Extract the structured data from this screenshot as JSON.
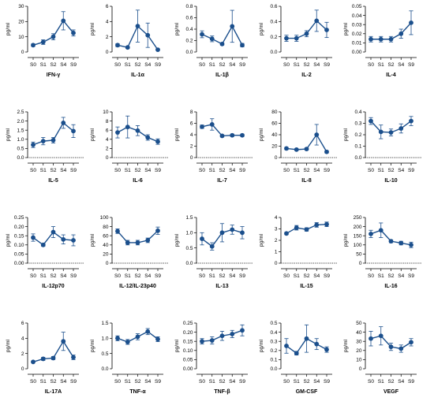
{
  "figure": {
    "series_color": "#1b4f8c",
    "baseline_style": "dotted",
    "layout": "4 rows x 5 columns"
  },
  "chart_data": [
    {
      "type": "line",
      "title": "IFN-γ",
      "ylabel": "pg/ml",
      "x": [
        "S0",
        "S1",
        "S2",
        "S4",
        "S9"
      ],
      "yticks": [
        "0",
        "10",
        "20",
        "30"
      ],
      "ylim": [
        0,
        30
      ],
      "values": [
        4.5,
        6.5,
        10,
        20.5,
        12.5
      ],
      "errors": [
        0.8,
        1.5,
        2,
        6,
        2
      ],
      "baseline": false
    },
    {
      "type": "line",
      "title": "IL-1α",
      "ylabel": "pg/ml",
      "x": [
        "S0",
        "S1",
        "S2",
        "S4",
        "S9"
      ],
      "yticks": [
        "0",
        "2",
        "4",
        "6"
      ],
      "ylim": [
        0,
        6
      ],
      "values": [
        0.9,
        0.6,
        3.4,
        2.2,
        0.3
      ],
      "errors": [
        0.2,
        0.1,
        2.1,
        1.6,
        0.1
      ],
      "baseline": false
    },
    {
      "type": "line",
      "title": "IL-1β",
      "ylabel": "pg/ml",
      "x": [
        "S0",
        "S1",
        "S2",
        "S4",
        "S9"
      ],
      "yticks": [
        "0.0",
        "0.2",
        "0.4",
        "0.6",
        "0.8"
      ],
      "ylim": [
        0,
        0.8
      ],
      "values": [
        0.31,
        0.23,
        0.14,
        0.45,
        0.12
      ],
      "errors": [
        0.06,
        0.05,
        0.02,
        0.28,
        0.03
      ],
      "baseline": false
    },
    {
      "type": "line",
      "title": "IL-2",
      "ylabel": "pg/ml",
      "x": [
        "S0",
        "S1",
        "S2",
        "S4",
        "S9"
      ],
      "yticks": [
        "0.0",
        "0.2",
        "0.4",
        "0.6"
      ],
      "ylim": [
        0,
        0.6
      ],
      "values": [
        0.18,
        0.18,
        0.24,
        0.41,
        0.29
      ],
      "errors": [
        0.04,
        0.04,
        0.04,
        0.14,
        0.1
      ],
      "baseline": false
    },
    {
      "type": "line",
      "title": "IL-4",
      "ylabel": "pg/ml",
      "x": [
        "S0",
        "S1",
        "S2",
        "S4",
        "S9"
      ],
      "yticks": [
        "0.00",
        "0.01",
        "0.02",
        "0.03",
        "0.04",
        "0.05"
      ],
      "ylim": [
        0,
        0.05
      ],
      "values": [
        0.014,
        0.014,
        0.014,
        0.02,
        0.032
      ],
      "errors": [
        0.003,
        0.003,
        0.003,
        0.005,
        0.013
      ],
      "baseline": false
    },
    {
      "type": "line",
      "title": "IL-5",
      "ylabel": "pg/ml",
      "x": [
        "S0",
        "S1",
        "S2",
        "S4",
        "S9"
      ],
      "yticks": [
        "0.0",
        "0.5",
        "1.0",
        "1.5",
        "2.0",
        "2.5"
      ],
      "ylim": [
        0,
        2.5
      ],
      "values": [
        0.7,
        0.9,
        0.95,
        1.9,
        1.45
      ],
      "errors": [
        0.15,
        0.2,
        0.15,
        0.3,
        0.35
      ],
      "baseline": true
    },
    {
      "type": "line",
      "title": "IL-6",
      "ylabel": "pg/ml",
      "x": [
        "S0",
        "S1",
        "S2",
        "S4",
        "S9"
      ],
      "yticks": [
        "0",
        "2",
        "4",
        "6",
        "8",
        "10"
      ],
      "ylim": [
        0,
        10
      ],
      "values": [
        5.5,
        6.7,
        5.9,
        4.4,
        3.5
      ],
      "errors": [
        1.2,
        2.4,
        1.1,
        0.6,
        0.6
      ],
      "baseline": true
    },
    {
      "type": "line",
      "title": "IL-7",
      "ylabel": "pg/ml",
      "x": [
        "S0",
        "S1",
        "S2",
        "S4",
        "S9"
      ],
      "yticks": [
        "0",
        "2",
        "4",
        "6",
        "8"
      ],
      "ylim": [
        0,
        8
      ],
      "values": [
        5.4,
        5.8,
        3.8,
        3.9,
        3.9
      ],
      "errors": [
        0.3,
        1,
        0.2,
        0.2,
        0.2
      ],
      "baseline": true
    },
    {
      "type": "line",
      "title": "IL-8",
      "ylabel": "pg/ml",
      "x": [
        "S0",
        "S1",
        "S2",
        "S4",
        "S9"
      ],
      "yticks": [
        "0",
        "20",
        "40",
        "60",
        "80"
      ],
      "ylim": [
        0,
        80
      ],
      "values": [
        16,
        14,
        15,
        40,
        10
      ],
      "errors": [
        2,
        1.5,
        2,
        18,
        2
      ],
      "baseline": true
    },
    {
      "type": "line",
      "title": "IL-10",
      "ylabel": "pg/ml",
      "x": [
        "S0",
        "S1",
        "S2",
        "S4",
        "S9"
      ],
      "yticks": [
        "0.0",
        "0.1",
        "0.2",
        "0.3",
        "0.4"
      ],
      "ylim": [
        0,
        0.4
      ],
      "values": [
        0.32,
        0.225,
        0.22,
        0.255,
        0.32
      ],
      "errors": [
        0.03,
        0.06,
        0.03,
        0.04,
        0.04
      ],
      "baseline": true
    },
    {
      "type": "line",
      "title": "IL-12p70",
      "ylabel": "pg/ml",
      "x": [
        "S0",
        "S1",
        "S2",
        "S4",
        "S9"
      ],
      "yticks": [
        "0.00",
        "0.05",
        "0.10",
        "0.15",
        "0.20",
        "0.25"
      ],
      "ylim": [
        0,
        0.25
      ],
      "values": [
        0.14,
        0.1,
        0.17,
        0.13,
        0.125
      ],
      "errors": [
        0.02,
        0.008,
        0.03,
        0.025,
        0.03
      ],
      "baseline": true
    },
    {
      "type": "line",
      "title": "IL-12/IL-23p40",
      "ylabel": "pg/ml",
      "x": [
        "S0",
        "S1",
        "S2",
        "S4",
        "S9"
      ],
      "yticks": [
        "0",
        "20",
        "40",
        "60",
        "80",
        "100"
      ],
      "ylim": [
        0,
        100
      ],
      "values": [
        70,
        45,
        45,
        50,
        71
      ],
      "errors": [
        5,
        5,
        5,
        5,
        8
      ],
      "baseline": true
    },
    {
      "type": "line",
      "title": "IL-13",
      "ylabel": "pg/ml",
      "x": [
        "S0",
        "S1",
        "S2",
        "S4",
        "S9"
      ],
      "yticks": [
        "0.0",
        "0.5",
        "1.0",
        "1.5"
      ],
      "ylim": [
        0,
        1.5
      ],
      "values": [
        0.8,
        0.55,
        1.0,
        1.1,
        1.0
      ],
      "errors": [
        0.2,
        0.12,
        0.3,
        0.15,
        0.2
      ],
      "baseline": true
    },
    {
      "type": "line",
      "title": "IL-15",
      "ylabel": "pg/ml",
      "x": [
        "S0",
        "S1",
        "S2",
        "S4",
        "S9"
      ],
      "yticks": [
        "0",
        "1",
        "2",
        "3",
        "4"
      ],
      "ylim": [
        0,
        4
      ],
      "values": [
        2.6,
        3.1,
        2.95,
        3.35,
        3.4
      ],
      "errors": [
        0.1,
        0.2,
        0.15,
        0.2,
        0.2
      ],
      "baseline": true
    },
    {
      "type": "line",
      "title": "IL-16",
      "ylabel": "pg/ml",
      "x": [
        "S0",
        "S1",
        "S2",
        "S4",
        "S9"
      ],
      "yticks": [
        "0",
        "50",
        "100",
        "150",
        "200",
        "250"
      ],
      "ylim": [
        0,
        250
      ],
      "values": [
        160,
        180,
        120,
        110,
        100
      ],
      "errors": [
        20,
        40,
        8,
        10,
        15
      ],
      "baseline": true
    },
    {
      "type": "line",
      "title": "IL-17A",
      "ylabel": "pg/ml",
      "x": [
        "S0",
        "S1",
        "S2",
        "S4",
        "S9"
      ],
      "yticks": [
        "0",
        "2",
        "4",
        "6"
      ],
      "ylim": [
        0,
        6
      ],
      "values": [
        0.9,
        1.3,
        1.4,
        3.6,
        1.5
      ],
      "errors": [
        0.1,
        0.2,
        0.2,
        1.2,
        0.3
      ],
      "baseline": false
    },
    {
      "type": "line",
      "title": "TNF-α",
      "ylabel": "pg/ml",
      "x": [
        "S0",
        "S1",
        "S2",
        "S4",
        "S9"
      ],
      "yticks": [
        "0.0",
        "0.5",
        "1.0",
        "1.5"
      ],
      "ylim": [
        0,
        1.5
      ],
      "values": [
        1.0,
        0.88,
        1.05,
        1.22,
        0.97
      ],
      "errors": [
        0.08,
        0.08,
        0.1,
        0.1,
        0.08
      ],
      "baseline": false
    },
    {
      "type": "line",
      "title": "TNF-β",
      "ylabel": "pg/ml",
      "x": [
        "S0",
        "S1",
        "S2",
        "S4",
        "S9"
      ],
      "yticks": [
        "0.00",
        "0.05",
        "0.10",
        "0.15",
        "0.20",
        "0.25"
      ],
      "ylim": [
        0,
        0.25
      ],
      "values": [
        0.15,
        0.155,
        0.18,
        0.19,
        0.21
      ],
      "errors": [
        0.015,
        0.02,
        0.025,
        0.02,
        0.03
      ],
      "baseline": false
    },
    {
      "type": "line",
      "title": "GM-CSF",
      "ylabel": "pg/ml",
      "x": [
        "S0",
        "S1",
        "S2",
        "S4",
        "S9"
      ],
      "yticks": [
        "0.0",
        "0.1",
        "0.2",
        "0.3",
        "0.4",
        "0.5"
      ],
      "ylim": [
        0,
        0.5
      ],
      "values": [
        0.25,
        0.17,
        0.33,
        0.27,
        0.21
      ],
      "errors": [
        0.08,
        0.02,
        0.15,
        0.06,
        0.03
      ],
      "baseline": false
    },
    {
      "type": "line",
      "title": "VEGF",
      "ylabel": "pg/ml",
      "x": [
        "S0",
        "S1",
        "S2",
        "S4",
        "S9"
      ],
      "yticks": [
        "0",
        "10",
        "20",
        "30",
        "40",
        "50"
      ],
      "ylim": [
        0,
        50
      ],
      "values": [
        33,
        36,
        24,
        22,
        29
      ],
      "errors": [
        8,
        10,
        4,
        4,
        4
      ],
      "baseline": false
    }
  ]
}
